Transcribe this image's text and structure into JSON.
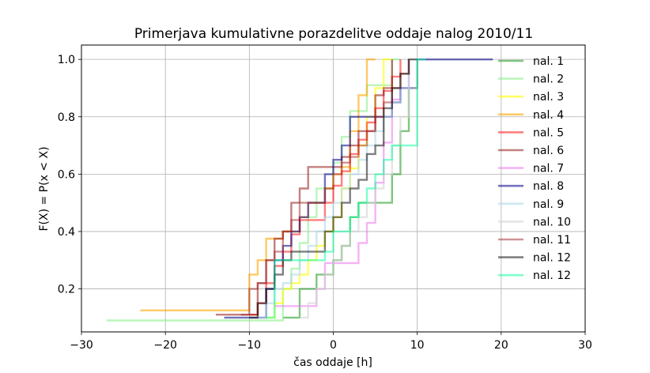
{
  "chart_data": {
    "type": "line",
    "title": "Primerjava kumulativne porazdelitve oddaje nalog 2010/11",
    "xlabel": "čas oddaje [h]",
    "ylabel": "F(X) = P(x < X)",
    "xlim": [
      -30,
      30
    ],
    "ylim": [
      0.05,
      1.05
    ],
    "xticks": [
      -30,
      -20,
      -10,
      0,
      10,
      20,
      30
    ],
    "xtick_labels": [
      "−30",
      "−20",
      "−10",
      "0",
      "10",
      "20",
      "30"
    ],
    "yticks": [
      0.2,
      0.4,
      0.6,
      0.8,
      1.0
    ],
    "ytick_labels": [
      "0.2",
      "0.4",
      "0.6",
      "0.8",
      "1.0"
    ],
    "grid": true,
    "legend_position": "right",
    "series": [
      {
        "name": "nal. 1",
        "color": "#2ca02c",
        "opacity": 0.6,
        "x": [
          -6,
          -5,
          -4,
          -2,
          0,
          1,
          2,
          3,
          4,
          5,
          6,
          7,
          8,
          9,
          10
        ],
        "y": [
          0.1,
          0.1,
          0.2,
          0.25,
          0.3,
          0.35,
          0.45,
          0.5,
          0.5,
          0.5,
          0.5,
          0.6,
          0.75,
          0.9,
          1.0
        ]
      },
      {
        "name": "nal. 2",
        "color": "#90ee90",
        "opacity": 0.6,
        "x": [
          -27,
          -7,
          -6,
          -5,
          -4,
          -3,
          -2,
          -1,
          0,
          1,
          2,
          3,
          4,
          5,
          6,
          7,
          8
        ],
        "y": [
          0.09,
          0.09,
          0.2,
          0.27,
          0.36,
          0.45,
          0.55,
          0.55,
          0.64,
          0.73,
          0.82,
          0.82,
          0.91,
          0.91,
          0.91,
          1.0,
          1.0
        ]
      },
      {
        "name": "nal. 3",
        "color": "#ffff00",
        "opacity": 0.6,
        "x": [
          -8,
          -7,
          -6,
          -5,
          -4,
          -3,
          -2,
          -1,
          0,
          1,
          2,
          3,
          4,
          5,
          6,
          7
        ],
        "y": [
          0.1,
          0.15,
          0.2,
          0.22,
          0.25,
          0.3,
          0.35,
          0.4,
          0.45,
          0.55,
          0.62,
          0.7,
          0.8,
          0.9,
          1.0,
          1.0
        ]
      },
      {
        "name": "nal. 4",
        "color": "#ffa500",
        "opacity": 0.6,
        "x": [
          -23,
          -11,
          -10,
          -9,
          -8,
          -7,
          -6,
          -5,
          -4,
          -3,
          -2,
          -1,
          0,
          1,
          2,
          3,
          4,
          5
        ],
        "y": [
          0.125,
          0.125,
          0.25,
          0.3,
          0.375,
          0.375,
          0.4,
          0.4,
          0.45,
          0.5,
          0.5,
          0.55,
          0.6,
          0.625,
          0.75,
          0.875,
          1.0,
          1.0
        ]
      },
      {
        "name": "nal. 5",
        "color": "#ff0000",
        "opacity": 0.5,
        "x": [
          -10,
          -9,
          -8,
          -7,
          -6,
          -5,
          -4,
          -3,
          -2,
          -1,
          0,
          1,
          2,
          3,
          4,
          5,
          6,
          7,
          8
        ],
        "y": [
          0.11,
          0.15,
          0.22,
          0.28,
          0.33,
          0.39,
          0.44,
          0.44,
          0.44,
          0.5,
          0.56,
          0.61,
          0.67,
          0.72,
          0.78,
          0.83,
          0.89,
          0.94,
          1.0
        ]
      },
      {
        "name": "nal. 6",
        "color": "#8b0000",
        "opacity": 0.5,
        "x": [
          -14,
          -10,
          -9,
          -8,
          -7,
          -6,
          -5,
          -4,
          -3,
          -2,
          -1,
          0,
          1,
          2,
          3,
          4,
          5,
          6,
          7
        ],
        "y": [
          0.11,
          0.11,
          0.22,
          0.3,
          0.375,
          0.4,
          0.5,
          0.55,
          0.625,
          0.625,
          0.625,
          0.625,
          0.66,
          0.7,
          0.75,
          0.75,
          0.875,
          0.9,
          1.0
        ]
      },
      {
        "name": "nal. 7",
        "color": "#ee82ee",
        "opacity": 0.6,
        "x": [
          -7,
          -6,
          -5,
          -4,
          -3,
          -2,
          -1,
          0,
          1,
          2,
          3,
          4,
          5,
          6,
          7,
          8,
          9
        ],
        "y": [
          0.14,
          0.14,
          0.14,
          0.14,
          0.14,
          0.2,
          0.29,
          0.29,
          0.29,
          0.29,
          0.36,
          0.43,
          0.57,
          0.71,
          0.86,
          0.9,
          1.0
        ]
      },
      {
        "name": "nal. 8",
        "color": "#00008b",
        "opacity": 0.55,
        "x": [
          -13,
          -9,
          -8,
          -7,
          -6,
          -5,
          -4,
          -3,
          -2,
          -1,
          0,
          1,
          2,
          3,
          4,
          5,
          6,
          7,
          8,
          9,
          10,
          19
        ],
        "y": [
          0.1,
          0.1,
          0.2,
          0.3,
          0.35,
          0.4,
          0.45,
          0.5,
          0.5,
          0.6,
          0.65,
          0.7,
          0.8,
          0.8,
          0.8,
          0.8,
          0.8,
          0.85,
          0.9,
          0.9,
          1.0,
          1.0
        ]
      },
      {
        "name": "nal. 9",
        "color": "#add8e6",
        "opacity": 0.6,
        "x": [
          -9,
          -8,
          -7,
          -6,
          -5,
          -4,
          -3,
          -2,
          -1,
          0,
          1,
          2,
          3,
          4,
          5,
          6,
          7,
          8,
          9
        ],
        "y": [
          0.1,
          0.15,
          0.2,
          0.22,
          0.25,
          0.3,
          0.35,
          0.4,
          0.45,
          0.5,
          0.55,
          0.6,
          0.65,
          0.7,
          0.75,
          0.8,
          0.85,
          0.9,
          1.0
        ]
      },
      {
        "name": "nal. 10",
        "color": "#d3d3d3",
        "opacity": 0.6,
        "x": [
          -4,
          -3,
          -2,
          -1,
          0,
          1,
          2,
          3,
          4,
          5,
          6,
          7,
          8,
          9,
          10
        ],
        "y": [
          0.1,
          0.15,
          0.2,
          0.25,
          0.3,
          0.35,
          0.4,
          0.45,
          0.5,
          0.55,
          0.6,
          0.7,
          0.8,
          0.9,
          1.0
        ]
      },
      {
        "name": "nal. 11",
        "color": "#a52a2a",
        "opacity": 0.5,
        "x": [
          -11,
          -10,
          -9,
          -8,
          -7,
          -6,
          -5,
          -4,
          -3,
          -2,
          -1,
          0,
          1,
          2,
          3,
          4,
          5,
          6,
          7,
          8,
          9
        ],
        "y": [
          0.11,
          0.2,
          0.22,
          0.3,
          0.33,
          0.4,
          0.44,
          0.5,
          0.5,
          0.5,
          0.55,
          0.6,
          0.64,
          0.66,
          0.7,
          0.75,
          0.8,
          0.85,
          0.9,
          0.95,
          1.0
        ]
      },
      {
        "name": "nal. 12",
        "color": "#000000",
        "opacity": 0.5,
        "x": [
          -10,
          -9,
          -8,
          -7,
          -6,
          -5,
          -4,
          -3,
          -2,
          -1,
          0,
          1,
          2,
          3,
          4,
          5,
          6,
          7,
          8,
          9,
          10
        ],
        "y": [
          0.1,
          0.15,
          0.2,
          0.25,
          0.3,
          0.33,
          0.33,
          0.33,
          0.33,
          0.4,
          0.45,
          0.5,
          0.55,
          0.58,
          0.67,
          0.7,
          0.83,
          0.9,
          0.95,
          1.0,
          1.0
        ]
      },
      {
        "name": "nal. 12",
        "color": "#00ff99",
        "opacity": 0.5,
        "x": [
          -8,
          -7,
          -6,
          -5,
          -4,
          -3,
          -2,
          -1,
          0,
          1,
          2,
          3,
          4,
          5,
          6,
          7,
          8,
          9,
          10,
          11
        ],
        "y": [
          0.1,
          0.3,
          0.3,
          0.3,
          0.3,
          0.3,
          0.3,
          0.33,
          0.4,
          0.4,
          0.45,
          0.5,
          0.55,
          0.6,
          0.65,
          0.7,
          0.7,
          0.7,
          1.0,
          1.0
        ]
      }
    ]
  }
}
